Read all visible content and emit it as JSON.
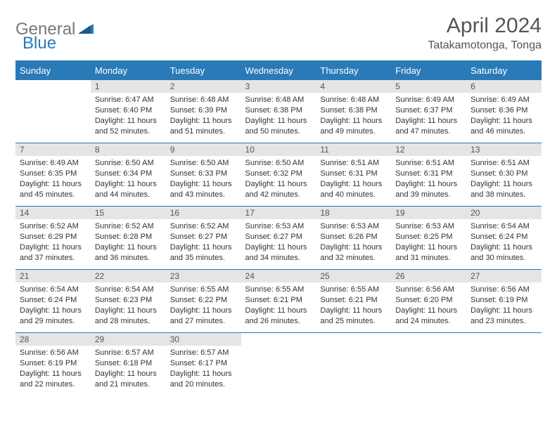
{
  "brand": {
    "part1": "General",
    "part2": "Blue"
  },
  "title": "April 2024",
  "location": "Tatakamotonga, Tonga",
  "colors": {
    "header_bg": "#2a7ab8",
    "daynum_bg": "#e5e5e5",
    "text": "#333333",
    "brand_gray": "#777777",
    "brand_blue": "#2a7ab8"
  },
  "weekdays": [
    "Sunday",
    "Monday",
    "Tuesday",
    "Wednesday",
    "Thursday",
    "Friday",
    "Saturday"
  ],
  "weeks": [
    [
      null,
      {
        "n": "1",
        "sr": "Sunrise: 6:47 AM",
        "ss": "Sunset: 6:40 PM",
        "d1": "Daylight: 11 hours",
        "d2": "and 52 minutes."
      },
      {
        "n": "2",
        "sr": "Sunrise: 6:48 AM",
        "ss": "Sunset: 6:39 PM",
        "d1": "Daylight: 11 hours",
        "d2": "and 51 minutes."
      },
      {
        "n": "3",
        "sr": "Sunrise: 6:48 AM",
        "ss": "Sunset: 6:38 PM",
        "d1": "Daylight: 11 hours",
        "d2": "and 50 minutes."
      },
      {
        "n": "4",
        "sr": "Sunrise: 6:48 AM",
        "ss": "Sunset: 6:38 PM",
        "d1": "Daylight: 11 hours",
        "d2": "and 49 minutes."
      },
      {
        "n": "5",
        "sr": "Sunrise: 6:49 AM",
        "ss": "Sunset: 6:37 PM",
        "d1": "Daylight: 11 hours",
        "d2": "and 47 minutes."
      },
      {
        "n": "6",
        "sr": "Sunrise: 6:49 AM",
        "ss": "Sunset: 6:36 PM",
        "d1": "Daylight: 11 hours",
        "d2": "and 46 minutes."
      }
    ],
    [
      {
        "n": "7",
        "sr": "Sunrise: 6:49 AM",
        "ss": "Sunset: 6:35 PM",
        "d1": "Daylight: 11 hours",
        "d2": "and 45 minutes."
      },
      {
        "n": "8",
        "sr": "Sunrise: 6:50 AM",
        "ss": "Sunset: 6:34 PM",
        "d1": "Daylight: 11 hours",
        "d2": "and 44 minutes."
      },
      {
        "n": "9",
        "sr": "Sunrise: 6:50 AM",
        "ss": "Sunset: 6:33 PM",
        "d1": "Daylight: 11 hours",
        "d2": "and 43 minutes."
      },
      {
        "n": "10",
        "sr": "Sunrise: 6:50 AM",
        "ss": "Sunset: 6:32 PM",
        "d1": "Daylight: 11 hours",
        "d2": "and 42 minutes."
      },
      {
        "n": "11",
        "sr": "Sunrise: 6:51 AM",
        "ss": "Sunset: 6:31 PM",
        "d1": "Daylight: 11 hours",
        "d2": "and 40 minutes."
      },
      {
        "n": "12",
        "sr": "Sunrise: 6:51 AM",
        "ss": "Sunset: 6:31 PM",
        "d1": "Daylight: 11 hours",
        "d2": "and 39 minutes."
      },
      {
        "n": "13",
        "sr": "Sunrise: 6:51 AM",
        "ss": "Sunset: 6:30 PM",
        "d1": "Daylight: 11 hours",
        "d2": "and 38 minutes."
      }
    ],
    [
      {
        "n": "14",
        "sr": "Sunrise: 6:52 AM",
        "ss": "Sunset: 6:29 PM",
        "d1": "Daylight: 11 hours",
        "d2": "and 37 minutes."
      },
      {
        "n": "15",
        "sr": "Sunrise: 6:52 AM",
        "ss": "Sunset: 6:28 PM",
        "d1": "Daylight: 11 hours",
        "d2": "and 36 minutes."
      },
      {
        "n": "16",
        "sr": "Sunrise: 6:52 AM",
        "ss": "Sunset: 6:27 PM",
        "d1": "Daylight: 11 hours",
        "d2": "and 35 minutes."
      },
      {
        "n": "17",
        "sr": "Sunrise: 6:53 AM",
        "ss": "Sunset: 6:27 PM",
        "d1": "Daylight: 11 hours",
        "d2": "and 34 minutes."
      },
      {
        "n": "18",
        "sr": "Sunrise: 6:53 AM",
        "ss": "Sunset: 6:26 PM",
        "d1": "Daylight: 11 hours",
        "d2": "and 32 minutes."
      },
      {
        "n": "19",
        "sr": "Sunrise: 6:53 AM",
        "ss": "Sunset: 6:25 PM",
        "d1": "Daylight: 11 hours",
        "d2": "and 31 minutes."
      },
      {
        "n": "20",
        "sr": "Sunrise: 6:54 AM",
        "ss": "Sunset: 6:24 PM",
        "d1": "Daylight: 11 hours",
        "d2": "and 30 minutes."
      }
    ],
    [
      {
        "n": "21",
        "sr": "Sunrise: 6:54 AM",
        "ss": "Sunset: 6:24 PM",
        "d1": "Daylight: 11 hours",
        "d2": "and 29 minutes."
      },
      {
        "n": "22",
        "sr": "Sunrise: 6:54 AM",
        "ss": "Sunset: 6:23 PM",
        "d1": "Daylight: 11 hours",
        "d2": "and 28 minutes."
      },
      {
        "n": "23",
        "sr": "Sunrise: 6:55 AM",
        "ss": "Sunset: 6:22 PM",
        "d1": "Daylight: 11 hours",
        "d2": "and 27 minutes."
      },
      {
        "n": "24",
        "sr": "Sunrise: 6:55 AM",
        "ss": "Sunset: 6:21 PM",
        "d1": "Daylight: 11 hours",
        "d2": "and 26 minutes."
      },
      {
        "n": "25",
        "sr": "Sunrise: 6:55 AM",
        "ss": "Sunset: 6:21 PM",
        "d1": "Daylight: 11 hours",
        "d2": "and 25 minutes."
      },
      {
        "n": "26",
        "sr": "Sunrise: 6:56 AM",
        "ss": "Sunset: 6:20 PM",
        "d1": "Daylight: 11 hours",
        "d2": "and 24 minutes."
      },
      {
        "n": "27",
        "sr": "Sunrise: 6:56 AM",
        "ss": "Sunset: 6:19 PM",
        "d1": "Daylight: 11 hours",
        "d2": "and 23 minutes."
      }
    ],
    [
      {
        "n": "28",
        "sr": "Sunrise: 6:56 AM",
        "ss": "Sunset: 6:19 PM",
        "d1": "Daylight: 11 hours",
        "d2": "and 22 minutes."
      },
      {
        "n": "29",
        "sr": "Sunrise: 6:57 AM",
        "ss": "Sunset: 6:18 PM",
        "d1": "Daylight: 11 hours",
        "d2": "and 21 minutes."
      },
      {
        "n": "30",
        "sr": "Sunrise: 6:57 AM",
        "ss": "Sunset: 6:17 PM",
        "d1": "Daylight: 11 hours",
        "d2": "and 20 minutes."
      },
      null,
      null,
      null,
      null
    ]
  ]
}
